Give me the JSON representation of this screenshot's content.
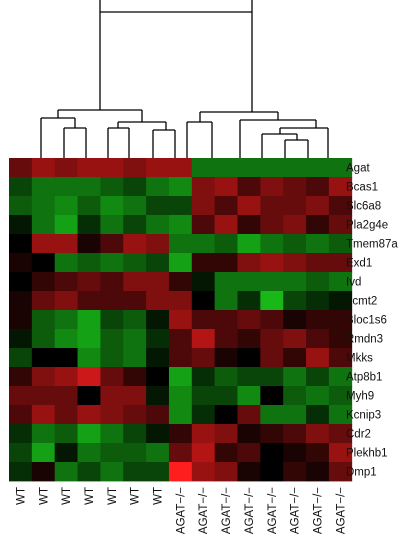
{
  "chart_data": {
    "type": "heatmap",
    "title": "",
    "xlabel": "",
    "ylabel": "",
    "columns": [
      "WT",
      "WT",
      "WT",
      "WT",
      "WT",
      "WT",
      "WT",
      "AGAT−/−",
      "AGAT−/−",
      "AGAT−/−",
      "AGAT−/−",
      "AGAT−/−",
      "AGAT−/−",
      "AGAT−/−",
      "AGAT−/−"
    ],
    "rows": [
      "Agat",
      "Bcas1",
      "Slc6a8",
      "Pla2g4e",
      "Tmem87a",
      "Exd1",
      "Ivd",
      "Lcmt2",
      "Bloc1s6",
      "Rmdn3",
      "Mkks",
      "Atp8b1",
      "Myh9",
      "Kcnip3",
      "Cdr2",
      "Plekhb1",
      "Dmp1"
    ],
    "value_range": [
      -1,
      1
    ],
    "colors": {
      "low": "#1ee61e",
      "mid": "#000000",
      "high": "#ff1e1e"
    },
    "dendrogram": "columns-top",
    "values": [
      [
        0.4,
        0.6,
        0.5,
        0.6,
        0.6,
        0.5,
        0.6,
        0.6,
        -0.5,
        -0.5,
        -0.5,
        -0.5,
        -0.5,
        -0.5,
        -0.5
      ],
      [
        -0.3,
        -0.5,
        -0.5,
        -0.5,
        -0.4,
        -0.3,
        -0.5,
        -0.6,
        0.5,
        0.6,
        0.3,
        0.5,
        0.4,
        0.3,
        0.6
      ],
      [
        -0.4,
        -0.5,
        -0.6,
        -0.4,
        -0.6,
        -0.5,
        -0.3,
        -0.3,
        0.5,
        0.3,
        0.6,
        0.4,
        0.4,
        0.5,
        0.3
      ],
      [
        -0.1,
        -0.5,
        -0.7,
        -0.2,
        -0.5,
        -0.3,
        -0.5,
        -0.6,
        0.3,
        0.6,
        0.2,
        0.4,
        0.5,
        0.2,
        0.4
      ],
      [
        0.0,
        0.6,
        0.6,
        0.1,
        0.3,
        0.6,
        0.5,
        -0.5,
        -0.5,
        -0.4,
        -0.7,
        -0.5,
        -0.4,
        -0.5,
        -0.4
      ],
      [
        0.1,
        0.0,
        -0.5,
        -0.4,
        -0.5,
        -0.4,
        -0.3,
        -0.7,
        0.2,
        0.2,
        0.5,
        0.6,
        0.5,
        0.4,
        0.4
      ],
      [
        0.0,
        0.2,
        0.3,
        0.4,
        0.3,
        0.5,
        0.5,
        0.2,
        -0.1,
        -0.5,
        -0.5,
        -0.5,
        -0.5,
        -0.4,
        -0.5
      ],
      [
        0.1,
        0.4,
        0.5,
        0.3,
        0.3,
        0.3,
        0.5,
        0.5,
        0.0,
        -0.5,
        -0.2,
        -0.8,
        -0.3,
        -0.2,
        -0.1
      ],
      [
        0.1,
        -0.4,
        -0.5,
        -0.7,
        -0.3,
        -0.4,
        -0.1,
        0.6,
        0.3,
        0.3,
        0.4,
        0.3,
        0.1,
        0.2,
        0.2
      ],
      [
        -0.1,
        -0.4,
        -0.6,
        -0.7,
        -0.4,
        -0.5,
        -0.2,
        0.3,
        0.7,
        0.3,
        0.2,
        0.4,
        0.5,
        0.3,
        0.2
      ],
      [
        -0.3,
        0.0,
        0.0,
        -0.6,
        -0.4,
        -0.5,
        -0.1,
        0.3,
        0.4,
        0.1,
        0.0,
        0.4,
        0.2,
        0.6,
        0.3
      ],
      [
        0.2,
        0.5,
        0.6,
        0.8,
        0.4,
        0.2,
        0.0,
        -0.7,
        -0.2,
        -0.4,
        -0.3,
        -0.3,
        -0.5,
        -0.3,
        -0.5
      ],
      [
        0.4,
        0.4,
        0.4,
        0.0,
        0.5,
        0.5,
        -0.1,
        -0.6,
        -0.3,
        -0.3,
        -0.6,
        0.0,
        -0.4,
        -0.5,
        -0.4
      ],
      [
        0.3,
        0.6,
        0.4,
        0.6,
        0.5,
        0.4,
        0.3,
        -0.6,
        -0.2,
        0.0,
        0.4,
        -0.5,
        -0.5,
        -0.2,
        -0.5
      ],
      [
        -0.2,
        -0.5,
        -0.4,
        -0.7,
        -0.5,
        -0.3,
        -0.1,
        0.2,
        0.6,
        0.5,
        0.1,
        0.2,
        0.3,
        0.5,
        0.4
      ],
      [
        -0.3,
        -0.7,
        -0.1,
        -0.5,
        -0.4,
        -0.4,
        -0.5,
        0.4,
        0.7,
        0.2,
        0.3,
        0.0,
        0.1,
        0.2,
        0.6
      ],
      [
        -0.2,
        0.1,
        -0.5,
        -0.3,
        -0.5,
        -0.3,
        -0.3,
        1.0,
        0.6,
        0.5,
        0.1,
        0.0,
        0.2,
        0.1,
        0.4
      ]
    ]
  }
}
